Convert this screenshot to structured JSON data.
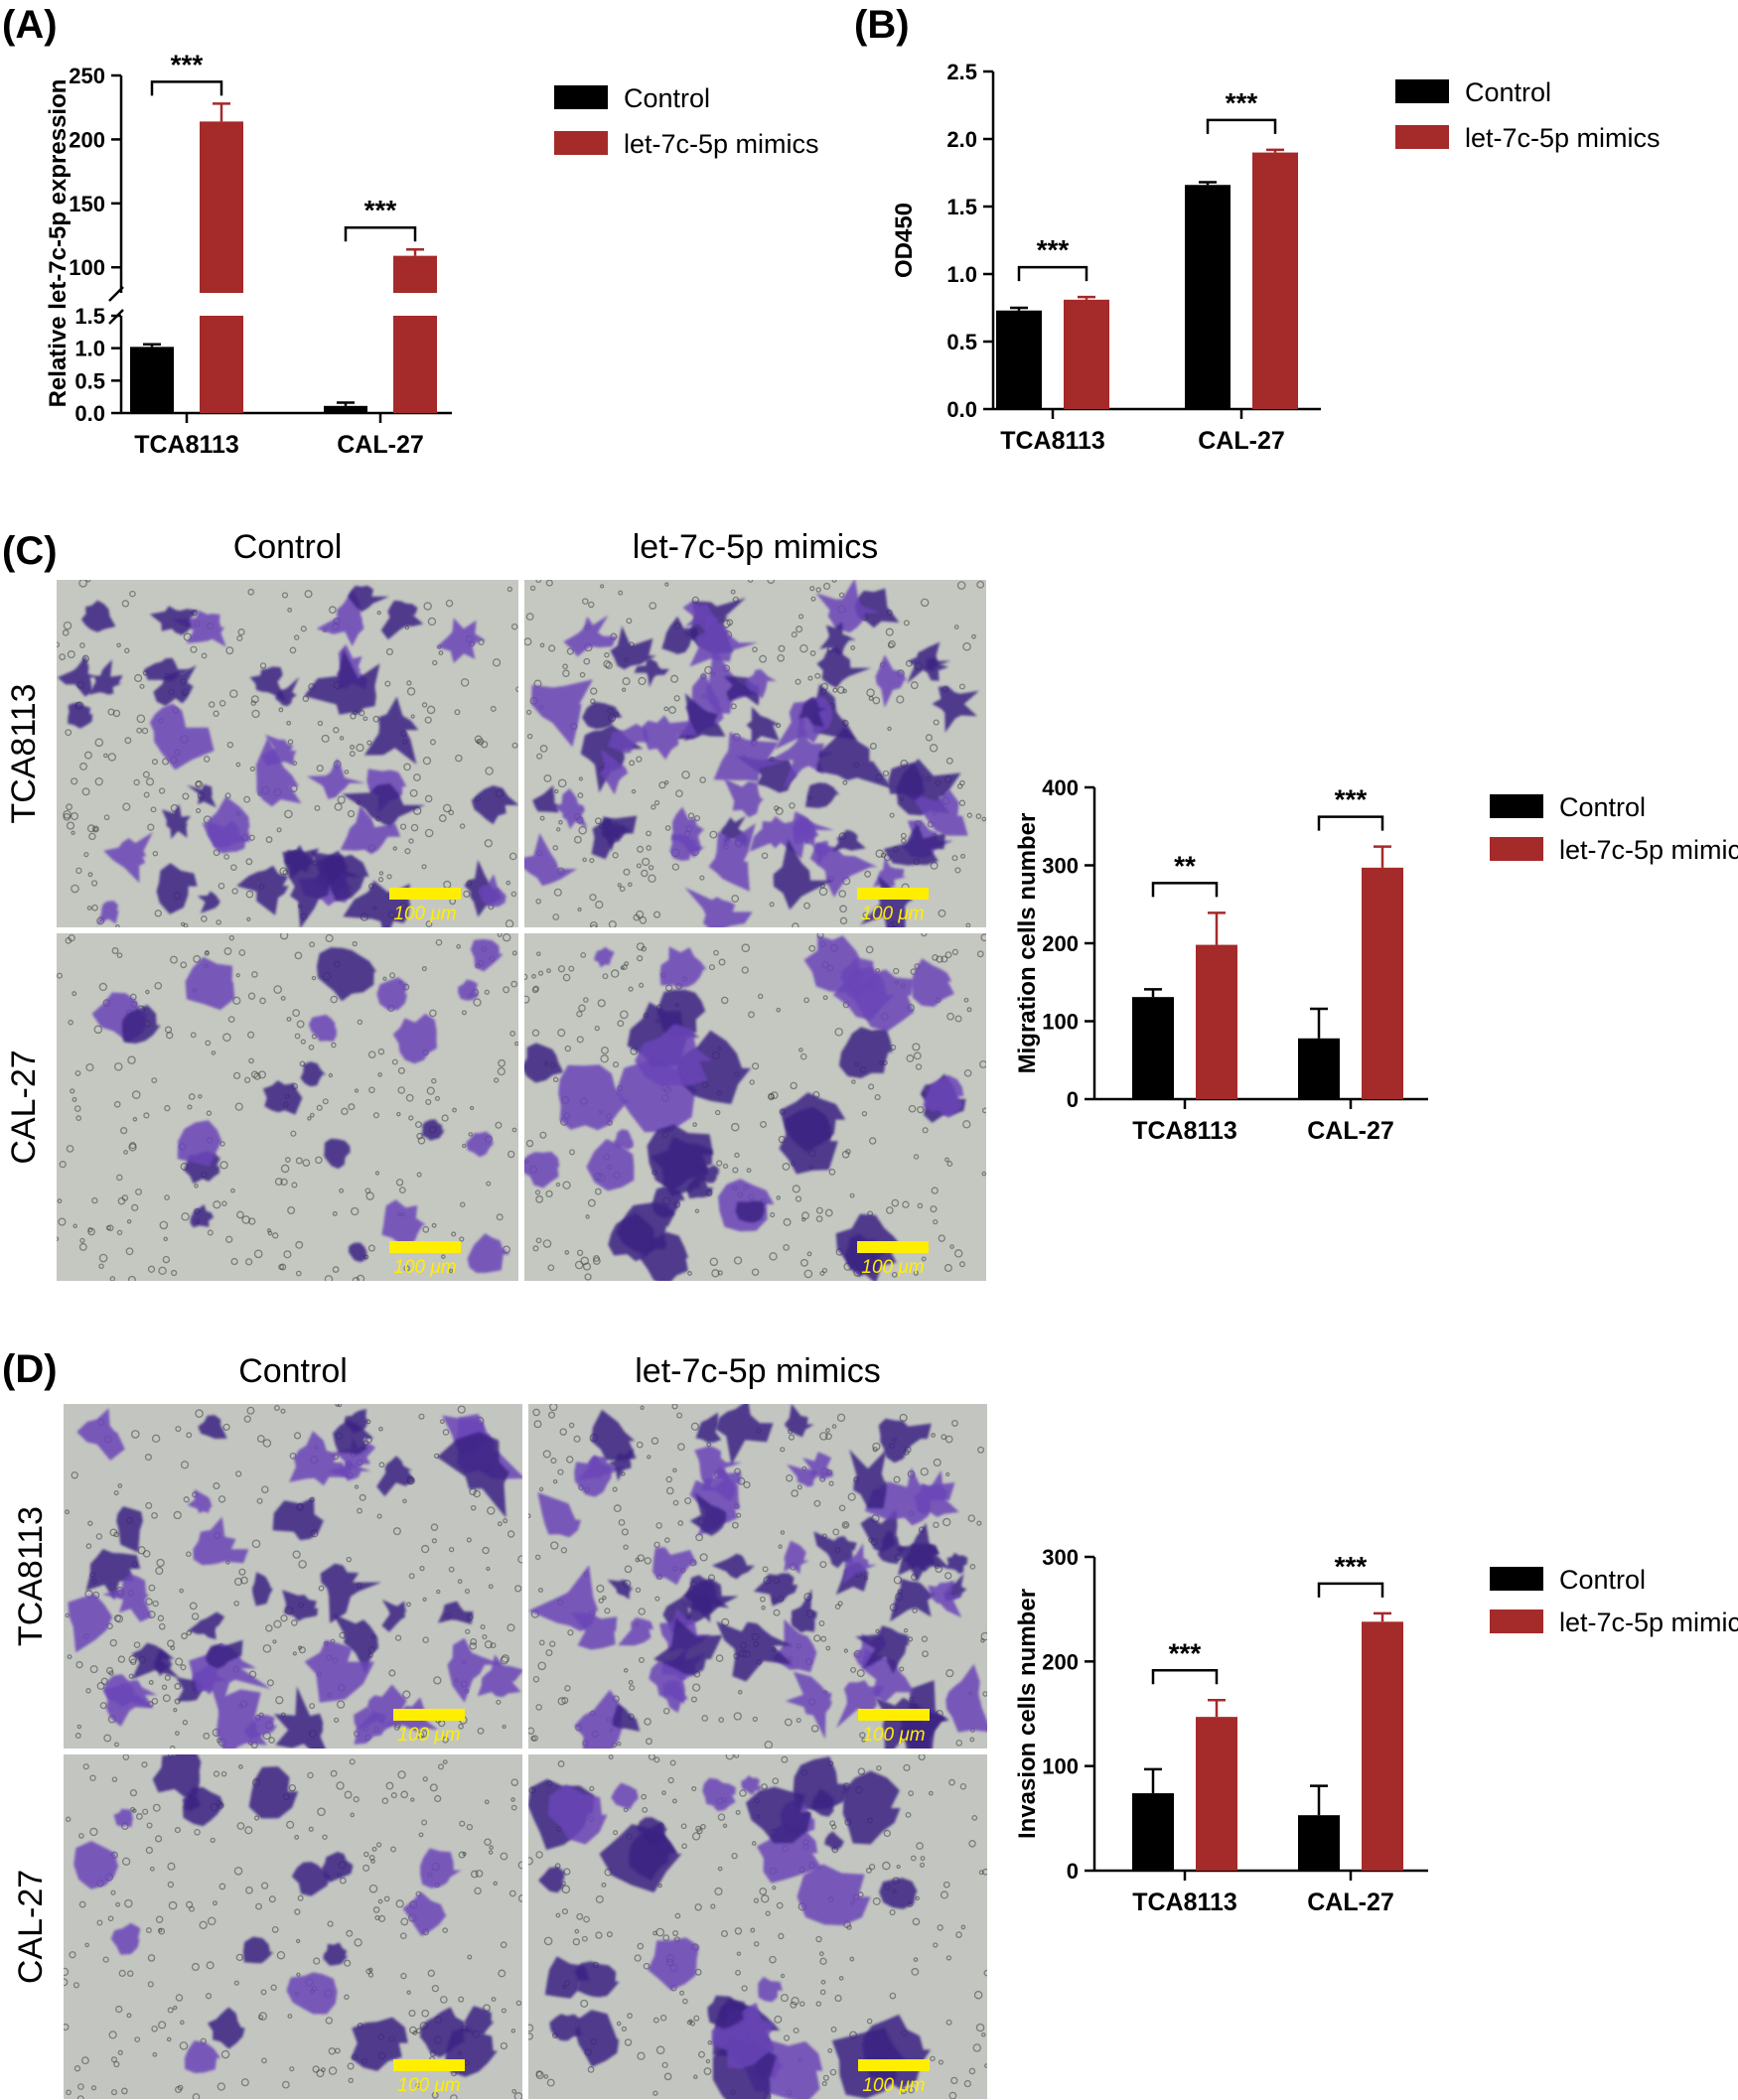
{
  "panels": {
    "a": "(A)",
    "b": "(B)",
    "c": "(C)",
    "d": "(D)"
  },
  "legend": {
    "control": "Control",
    "mimics": "let-7c-5p mimics"
  },
  "colors": {
    "control": "#000000",
    "mimics": "#a52a2a",
    "scale_bar": "#ffee00"
  },
  "micrographs": {
    "c": {
      "columns": [
        "Control",
        "let-7c-5p mimics"
      ],
      "rows": [
        "TCA8113",
        "CAL-27"
      ],
      "scale_bar": "100 μm",
      "stain": "crystal violet",
      "background": "#c5c8c1",
      "cell_color": "#6a45b8",
      "cell_dark": "#3b2183"
    },
    "d": {
      "columns": [
        "Control",
        "let-7c-5p mimics"
      ],
      "rows": [
        "TCA8113",
        "CAL-27"
      ],
      "scale_bar": "100 μm",
      "stain": "crystal violet",
      "background": "#c3c6c0",
      "cell_color": "#6a45b8",
      "cell_dark": "#3b2183"
    }
  },
  "chart_data": [
    {
      "id": "a",
      "type": "bar",
      "ylabel": "Relative let-7c-5p expression",
      "categories": [
        "TCA8113",
        "CAL-27"
      ],
      "series": [
        {
          "name": "Control",
          "values": [
            1.02,
            0.11
          ],
          "errors": [
            0.04,
            0.05
          ]
        },
        {
          "name": "let-7c-5p mimics",
          "values": [
            214,
            109
          ],
          "errors": [
            14,
            5
          ]
        }
      ],
      "y_axis_break": {
        "lower": [
          0,
          1.5
        ],
        "upper": [
          80,
          250
        ]
      },
      "yticks_lower": [
        0.0,
        0.5,
        1.0,
        1.5
      ],
      "yticks_lower_labels": [
        "0.0",
        "0.5",
        "1.0",
        "1.5"
      ],
      "yticks_upper": [
        100,
        150,
        200,
        250
      ],
      "yticks_upper_labels": [
        "100",
        "150",
        "200",
        "250"
      ],
      "significance": [
        "***",
        "***"
      ],
      "legend_position": "right"
    },
    {
      "id": "b",
      "type": "bar",
      "ylabel": "OD450",
      "categories": [
        "TCA8113",
        "CAL-27"
      ],
      "series": [
        {
          "name": "Control",
          "values": [
            0.73,
            1.66
          ],
          "errors": [
            0.02,
            0.02
          ]
        },
        {
          "name": "let-7c-5p mimics",
          "values": [
            0.81,
            1.9
          ],
          "errors": [
            0.02,
            0.02
          ]
        }
      ],
      "ylim": [
        0,
        2.5
      ],
      "yticks": [
        0.0,
        0.5,
        1.0,
        1.5,
        2.0,
        2.5
      ],
      "ytick_labels": [
        "0.0",
        "0.5",
        "1.0",
        "1.5",
        "2.0",
        "2.5"
      ],
      "significance": [
        "***",
        "***"
      ],
      "legend_position": "right"
    },
    {
      "id": "c",
      "type": "bar",
      "ylabel": "Migration cells number",
      "categories": [
        "TCA8113",
        "CAL-27"
      ],
      "series": [
        {
          "name": "Control",
          "values": [
            131,
            78
          ],
          "errors": [
            10,
            38
          ]
        },
        {
          "name": "let-7c-5p mimics",
          "values": [
            198,
            297
          ],
          "errors": [
            41,
            27
          ]
        }
      ],
      "ylim": [
        0,
        400
      ],
      "yticks": [
        0,
        100,
        200,
        300,
        400
      ],
      "ytick_labels": [
        "0",
        "100",
        "200",
        "300",
        "400"
      ],
      "significance": [
        "**",
        "***"
      ],
      "legend_position": "right"
    },
    {
      "id": "d",
      "type": "bar",
      "ylabel": "Invasion cells number",
      "categories": [
        "TCA8113",
        "CAL-27"
      ],
      "series": [
        {
          "name": "Control",
          "values": [
            74,
            53
          ],
          "errors": [
            23,
            28
          ]
        },
        {
          "name": "let-7c-5p mimics",
          "values": [
            147,
            238
          ],
          "errors": [
            16,
            8
          ]
        }
      ],
      "ylim": [
        0,
        300
      ],
      "yticks": [
        0,
        100,
        200,
        300
      ],
      "ytick_labels": [
        "0",
        "100",
        "200",
        "300"
      ],
      "significance": [
        "***",
        "***"
      ],
      "legend_position": "right"
    }
  ]
}
